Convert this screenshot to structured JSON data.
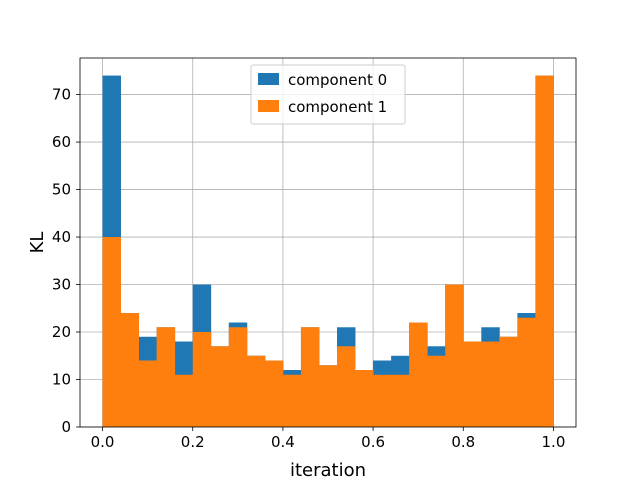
{
  "chart_data": {
    "type": "bar",
    "subtype": "overlaid-histogram",
    "title": "",
    "xlabel": "iteration",
    "ylabel": "KL",
    "xlim": [
      -0.05,
      1.05
    ],
    "ylim": [
      0,
      77.7
    ],
    "xticks": [
      0.0,
      0.2,
      0.4,
      0.6,
      0.8,
      1.0
    ],
    "xtick_labels": [
      "0.0",
      "0.2",
      "0.4",
      "0.6",
      "0.8",
      "1.0"
    ],
    "yticks": [
      0,
      10,
      20,
      30,
      40,
      50,
      60,
      70
    ],
    "ytick_labels": [
      "0",
      "10",
      "20",
      "30",
      "40",
      "50",
      "60",
      "70"
    ],
    "grid": true,
    "legend_position": "top-center",
    "bin_edges": [
      0.0,
      0.04,
      0.08,
      0.12,
      0.16,
      0.2,
      0.24,
      0.28,
      0.32,
      0.36,
      0.4,
      0.44,
      0.48,
      0.52,
      0.56,
      0.6,
      0.64,
      0.68,
      0.72,
      0.76,
      0.8,
      0.84,
      0.88,
      0.92,
      0.96,
      1.0
    ],
    "series": [
      {
        "name": "component 0",
        "color": "#1f77b4",
        "values": [
          74,
          24,
          19,
          21,
          18,
          30,
          17,
          22,
          15,
          14,
          12,
          21,
          13,
          21,
          12,
          14,
          15,
          22,
          17,
          30,
          18,
          21,
          19,
          24,
          74
        ]
      },
      {
        "name": "component 1",
        "color": "#ff7f0e",
        "values": [
          40,
          24,
          14,
          21,
          11,
          20,
          17,
          21,
          15,
          14,
          11,
          21,
          13,
          17,
          12,
          11,
          11,
          22,
          15,
          30,
          18,
          18,
          19,
          23,
          74
        ]
      }
    ]
  }
}
